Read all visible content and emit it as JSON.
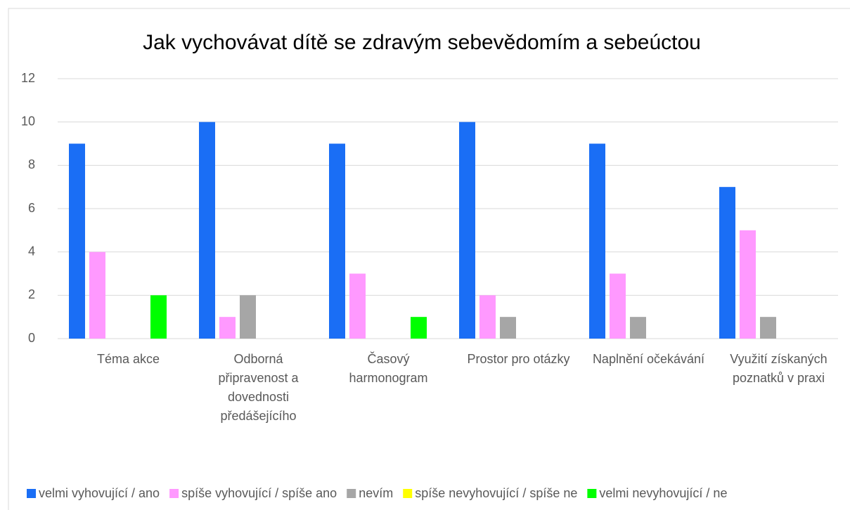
{
  "chart_data": {
    "type": "bar",
    "title": "Jak vychovávat dítě se zdravým sebevědomím a sebeúctou",
    "categories": [
      "Téma akce",
      "Odborná připravenost a dovednosti předášejícího",
      "Časový harmonogram",
      "Prostor pro otázky",
      "Naplnění očekávání",
      "Využití získaných poznatků v praxi"
    ],
    "series": [
      {
        "name": "velmi vyhovující / ano",
        "color": "#1a6ef5",
        "values": [
          9,
          10,
          9,
          10,
          9,
          7
        ]
      },
      {
        "name": "spíše vyhovující / spíše ano",
        "color": "#ff99ff",
        "values": [
          4,
          1,
          3,
          2,
          3,
          5
        ]
      },
      {
        "name": "nevím",
        "color": "#a6a6a6",
        "values": [
          0,
          2,
          0,
          1,
          1,
          1
        ]
      },
      {
        "name": "spíše nevyhovující / spíše ne",
        "color": "#ffff00",
        "values": [
          0,
          0,
          0,
          0,
          0,
          0
        ]
      },
      {
        "name": "velmi nevyhovující / ne",
        "color": "#00ff00",
        "values": [
          2,
          0,
          1,
          0,
          0,
          0
        ]
      }
    ],
    "ylim": [
      0,
      12
    ],
    "yticks": [
      0,
      2,
      4,
      6,
      8,
      10,
      12
    ],
    "grid": true,
    "legend": "bottom"
  }
}
